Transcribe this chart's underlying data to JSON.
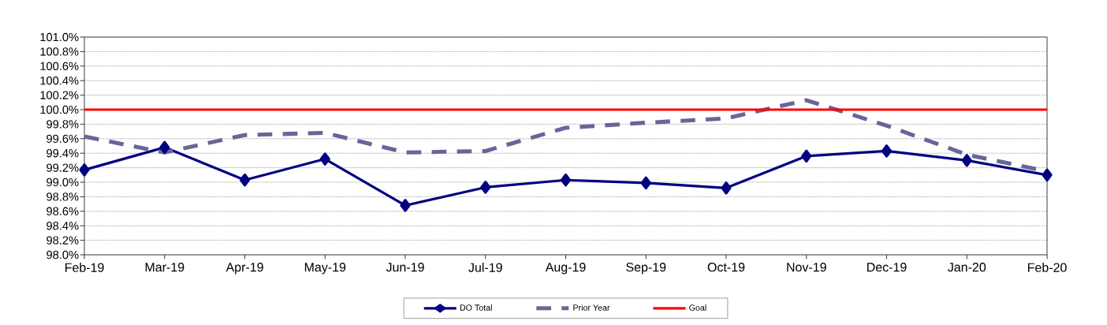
{
  "chart_data": {
    "type": "line",
    "categories": [
      "Feb-19",
      "Mar-19",
      "Apr-19",
      "May-19",
      "Jun-19",
      "Jul-19",
      "Aug-19",
      "Sep-19",
      "Oct-19",
      "Nov-19",
      "Dec-19",
      "Jan-20",
      "Feb-20"
    ],
    "series": [
      {
        "name": "DO Total",
        "color": "#000080",
        "marker": "diamond",
        "line_style": "solid",
        "values": [
          99.17,
          99.48,
          99.03,
          99.32,
          98.68,
          98.93,
          99.03,
          98.99,
          98.92,
          99.36,
          99.43,
          99.3,
          99.1
        ]
      },
      {
        "name": "Prior Year",
        "color": "#666699",
        "marker": "none",
        "line_style": "dashed",
        "values": [
          99.63,
          99.41,
          99.65,
          99.68,
          99.41,
          99.43,
          99.75,
          99.82,
          99.88,
          100.13,
          99.78,
          99.38,
          99.15
        ]
      },
      {
        "name": "Goal",
        "color": "#ff0000",
        "marker": "none",
        "line_style": "solid",
        "values": [
          100,
          100,
          100,
          100,
          100,
          100,
          100,
          100,
          100,
          100,
          100,
          100,
          100
        ]
      }
    ],
    "ylim": [
      98.0,
      101.0
    ],
    "yticks": [
      {
        "value": 98.0,
        "label": "98.0%"
      },
      {
        "value": 98.2,
        "label": "98.2%"
      },
      {
        "value": 98.4,
        "label": "98.4%"
      },
      {
        "value": 98.6,
        "label": "98.6%"
      },
      {
        "value": 98.8,
        "label": "98.8%"
      },
      {
        "value": 99.0,
        "label": "99.0%"
      },
      {
        "value": 99.2,
        "label": "99.2%"
      },
      {
        "value": 99.4,
        "label": "99.4%"
      },
      {
        "value": 99.6,
        "label": "99.6%"
      },
      {
        "value": 99.8,
        "label": "99.8%"
      },
      {
        "value": 100.0,
        "label": "100.0%"
      },
      {
        "value": 100.2,
        "label": "100.2%"
      },
      {
        "value": 100.4,
        "label": "100.4%"
      },
      {
        "value": 100.6,
        "label": "100.6%"
      },
      {
        "value": 100.8,
        "label": "100.8%"
      },
      {
        "value": 101.0,
        "label": "101.0%"
      }
    ],
    "grid": "y",
    "legend": "bottom"
  }
}
